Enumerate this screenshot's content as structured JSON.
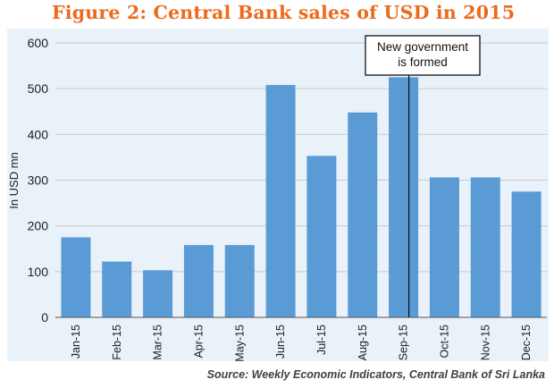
{
  "title": "Figure 2: Central Bank sales of USD in 2015",
  "source": "Source: Weekly Economic Indicators, Central Bank of Sri Lanka",
  "colors": {
    "title": "#ec6a1c",
    "bar": "#5b9bd5",
    "plot_background": "#e9f1f9",
    "grid": "#c9c9c9"
  },
  "chart_data": {
    "type": "bar",
    "categories": [
      "Jan-15",
      "Feb-15",
      "Mar-15",
      "Apr-15",
      "May-15",
      "Jun-15",
      "Jul-15",
      "Aug-15",
      "Sep-15",
      "Oct-15",
      "Nov-15",
      "Dec-15"
    ],
    "values": [
      175,
      122,
      103,
      158,
      158,
      508,
      353,
      448,
      525,
      306,
      306,
      275
    ],
    "ylabel": "In USD mn",
    "xlabel": "",
    "ylim": [
      0,
      600
    ],
    "yticks": [
      0,
      100,
      200,
      300,
      400,
      500,
      600
    ],
    "grid": true,
    "legend": "none",
    "annotation": {
      "lines": [
        "New government",
        "is formed"
      ],
      "category": "Sep-15"
    }
  }
}
